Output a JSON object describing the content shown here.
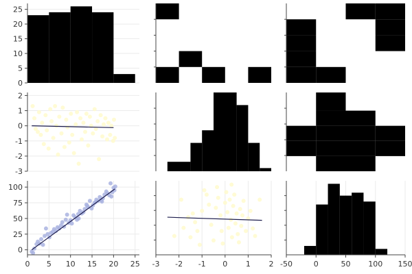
{
  "chart_data": {
    "type": "pairplot",
    "variables": [
      "x1",
      "x2",
      "x3"
    ],
    "colors": {
      "bar": "#000000",
      "scatter_x2_vs_x1": "#fffacd",
      "scatter_x3_vs_x1": "#a9b3e0",
      "scatter_x3_vs_x2": "#fffacd",
      "fit_line": "#1a1a4a",
      "grid": "#ebebeb"
    },
    "panels": [
      {
        "position": "row1-col1",
        "type": "bar",
        "xlim": [
          0,
          26
        ],
        "ylim": [
          0,
          27
        ],
        "xticks": [],
        "yticks": [
          0,
          5,
          10,
          15,
          20,
          25
        ],
        "bins": [
          {
            "x0": 0,
            "x1": 5,
            "count": 23
          },
          {
            "x0": 5,
            "x1": 10,
            "count": 24
          },
          {
            "x0": 10,
            "x1": 15,
            "count": 26
          },
          {
            "x0": 15,
            "x1": 20,
            "count": 24
          },
          {
            "x0": 20,
            "x1": 25,
            "count": 3
          }
        ]
      },
      {
        "position": "row1-col2",
        "type": "heatmap",
        "xlim": [
          -3,
          2
        ],
        "ylim": [
          0,
          25
        ],
        "xticks": [],
        "yticks": [],
        "x_edges": [
          -3,
          -2,
          -1,
          0,
          1,
          2
        ],
        "y_edges": [
          0,
          5,
          10,
          15,
          20,
          25
        ],
        "cells": [
          [
            1,
            0,
            0,
            0,
            0
          ],
          [
            0,
            0,
            0,
            0,
            0
          ],
          [
            0,
            0,
            0,
            0,
            0
          ],
          [
            0,
            1,
            0,
            0,
            0
          ],
          [
            1,
            0,
            1,
            0,
            1
          ]
        ]
      },
      {
        "position": "row1-col3",
        "type": "heatmap",
        "xlim": [
          -50,
          150
        ],
        "ylim": [
          0,
          25
        ],
        "xticks": [],
        "yticks": [],
        "x_edges": [
          -50,
          0,
          50,
          100,
          150
        ],
        "y_edges": [
          0,
          5,
          10,
          15,
          20,
          25
        ],
        "cells": [
          [
            0,
            0,
            1,
            1
          ],
          [
            1,
            0,
            0,
            1
          ],
          [
            1,
            0,
            0,
            1
          ],
          [
            1,
            0,
            0,
            0
          ],
          [
            1,
            1,
            0,
            0
          ]
        ]
      },
      {
        "position": "row2-col1",
        "type": "scatter",
        "xlim": [
          0,
          26
        ],
        "ylim": [
          -3,
          2.2
        ],
        "xticks": [],
        "yticks": [
          -3,
          -2,
          -1,
          0,
          1,
          2
        ],
        "fit": {
          "x0": 1,
          "y0": 0.0,
          "x1": 20,
          "y1": -0.12
        },
        "points": [
          [
            1.2,
            1.3
          ],
          [
            1.6,
            0.5
          ],
          [
            1.9,
            -0.2
          ],
          [
            2.4,
            -0.4
          ],
          [
            2.7,
            0.9
          ],
          [
            3.1,
            -0.6
          ],
          [
            3.4,
            0.2
          ],
          [
            3.8,
            -1.2
          ],
          [
            4.2,
            0.7
          ],
          [
            4.5,
            -0.3
          ],
          [
            4.9,
            -1.5
          ],
          [
            5.3,
            1.1
          ],
          [
            5.6,
            0.3
          ],
          [
            6.0,
            -0.8
          ],
          [
            6.4,
            1.3
          ],
          [
            6.7,
            0.0
          ],
          [
            7.1,
            -1.9
          ],
          [
            7.4,
            0.6
          ],
          [
            7.9,
            -0.5
          ],
          [
            8.2,
            1.2
          ],
          [
            8.6,
            -1.4
          ],
          [
            9.0,
            0.4
          ],
          [
            9.3,
            -0.1
          ],
          [
            9.7,
            -1.1
          ],
          [
            10.1,
            0.8
          ],
          [
            10.4,
            -0.6
          ],
          [
            10.8,
            -1.8
          ],
          [
            11.2,
            0.1
          ],
          [
            11.5,
            0.9
          ],
          [
            11.9,
            -2.5
          ],
          [
            12.3,
            0.5
          ],
          [
            12.6,
            -0.9
          ],
          [
            13.0,
            0.2
          ],
          [
            13.4,
            -0.4
          ],
          [
            13.7,
            0.8
          ],
          [
            14.1,
            -1.3
          ],
          [
            14.5,
            0.6
          ],
          [
            14.8,
            0.0
          ],
          [
            15.2,
            -0.5
          ],
          [
            15.6,
            1.1
          ],
          [
            15.9,
            -0.2
          ],
          [
            16.3,
            0.3
          ],
          [
            16.6,
            -2.2
          ],
          [
            17.0,
            0.7
          ],
          [
            17.4,
            -0.7
          ],
          [
            17.7,
            0.1
          ],
          [
            18.1,
            0.5
          ],
          [
            18.5,
            -0.9
          ],
          [
            18.8,
            0.2
          ],
          [
            19.2,
            -0.6
          ],
          [
            19.5,
            0.0
          ],
          [
            19.9,
            -1.0
          ],
          [
            20.1,
            0.4
          ],
          [
            20.3,
            -0.8
          ]
        ]
      },
      {
        "position": "row2-col2",
        "type": "bar",
        "xlim": [
          -3,
          2
        ],
        "ylim": [
          0,
          25
        ],
        "xticks": [],
        "yticks": [],
        "bins": [
          {
            "x0": -2.5,
            "x1": -1.5,
            "count": 3
          },
          {
            "x0": -1.5,
            "x1": -1.0,
            "count": 9
          },
          {
            "x0": -1.0,
            "x1": -0.5,
            "count": 13
          },
          {
            "x0": -0.5,
            "x1": 0.5,
            "count": 25
          },
          {
            "x0": 0.5,
            "x1": 1.0,
            "count": 21
          },
          {
            "x0": 1.0,
            "x1": 1.5,
            "count": 9
          },
          {
            "x0": 1.5,
            "x1": 2.0,
            "count": 1
          }
        ]
      },
      {
        "position": "row2-col3",
        "type": "heatmap",
        "xlim": [
          -50,
          150
        ],
        "ylim": [
          -3,
          2.2
        ],
        "xticks": [],
        "yticks": [],
        "x_edges": [
          -50,
          0,
          50,
          100,
          150
        ],
        "y_edges": [
          -3,
          -2,
          -1,
          0,
          1,
          2.2
        ],
        "cells": [
          [
            0,
            1,
            0,
            0
          ],
          [
            0,
            1,
            1,
            0
          ],
          [
            1,
            1,
            1,
            1
          ],
          [
            1,
            1,
            1,
            1
          ],
          [
            0,
            1,
            1,
            0
          ]
        ]
      },
      {
        "position": "row3-col1",
        "type": "scatter",
        "xlim": [
          0,
          26
        ],
        "ylim": [
          -8,
          110
        ],
        "xticks": [
          0,
          5,
          10,
          15,
          20,
          25
        ],
        "yticks": [
          0,
          25,
          50,
          75,
          100
        ],
        "fit": {
          "x0": 1,
          "y0": 0,
          "x1": 20.3,
          "y1": 97
        },
        "points": [
          [
            1.0,
            -3
          ],
          [
            1.3,
            -5
          ],
          [
            1.6,
            2
          ],
          [
            2.1,
            9
          ],
          [
            2.4,
            13
          ],
          [
            2.8,
            10
          ],
          [
            3.2,
            17
          ],
          [
            3.6,
            8
          ],
          [
            4.0,
            22
          ],
          [
            4.3,
            34
          ],
          [
            4.7,
            25
          ],
          [
            5.1,
            20
          ],
          [
            5.5,
            27
          ],
          [
            5.9,
            29
          ],
          [
            6.2,
            33
          ],
          [
            6.6,
            30
          ],
          [
            7.0,
            36
          ],
          [
            7.4,
            34
          ],
          [
            7.8,
            39
          ],
          [
            8.1,
            44
          ],
          [
            8.5,
            37
          ],
          [
            8.9,
            48
          ],
          [
            9.2,
            56
          ],
          [
            9.6,
            43
          ],
          [
            10.0,
            47
          ],
          [
            10.3,
            42
          ],
          [
            10.7,
            55
          ],
          [
            11.1,
            52
          ],
          [
            11.5,
            48
          ],
          [
            11.8,
            57
          ],
          [
            12.2,
            62
          ],
          [
            12.6,
            58
          ],
          [
            13.0,
            60
          ],
          [
            13.3,
            65
          ],
          [
            13.7,
            72
          ],
          [
            14.1,
            68
          ],
          [
            14.5,
            78
          ],
          [
            14.9,
            66
          ],
          [
            15.2,
            71
          ],
          [
            15.6,
            75
          ],
          [
            16.0,
            80
          ],
          [
            16.4,
            78
          ],
          [
            16.8,
            84
          ],
          [
            17.1,
            79
          ],
          [
            17.5,
            82
          ],
          [
            17.9,
            88
          ],
          [
            18.3,
            93
          ],
          [
            18.6,
            90
          ],
          [
            19.0,
            87
          ],
          [
            19.3,
            106
          ],
          [
            19.7,
            92
          ],
          [
            20.0,
            99
          ],
          [
            20.2,
            95
          ],
          [
            20.4,
            101
          ],
          [
            19.5,
            85
          ],
          [
            17.3,
            77
          ],
          [
            15.8,
            76
          ],
          [
            13.9,
            70
          ],
          [
            11.9,
            50
          ]
        ]
      },
      {
        "position": "row3-col2",
        "type": "scatter",
        "xlim": [
          -3,
          2
        ],
        "ylim": [
          -8,
          110
        ],
        "xticks": [
          -3,
          -2,
          -1,
          0,
          1,
          2
        ],
        "yticks": [],
        "fit": {
          "x0": -2.5,
          "y0": 52,
          "x1": 1.6,
          "y1": 47
        },
        "points": [
          [
            -2.2,
            22
          ],
          [
            -1.9,
            80
          ],
          [
            -1.8,
            35
          ],
          [
            -1.6,
            52
          ],
          [
            -1.5,
            20
          ],
          [
            -1.3,
            44
          ],
          [
            -1.2,
            30
          ],
          [
            -1.1,
            8
          ],
          [
            -1.0,
            62
          ],
          [
            -0.9,
            95
          ],
          [
            -0.8,
            88
          ],
          [
            -0.7,
            72
          ],
          [
            -0.6,
            40
          ],
          [
            -0.5,
            15
          ],
          [
            -0.4,
            67
          ],
          [
            -0.3,
            83
          ],
          [
            -0.2,
            55
          ],
          [
            -0.15,
            30
          ],
          [
            -0.1,
            10
          ],
          [
            0.0,
            75
          ],
          [
            0.05,
            92
          ],
          [
            0.1,
            60
          ],
          [
            0.15,
            35
          ],
          [
            0.2,
            80
          ],
          [
            0.25,
            48
          ],
          [
            0.3,
            20
          ],
          [
            0.35,
            70
          ],
          [
            0.4,
            88
          ],
          [
            0.45,
            42
          ],
          [
            0.5,
            58
          ],
          [
            0.55,
            25
          ],
          [
            0.6,
            12
          ],
          [
            0.65,
            65
          ],
          [
            0.7,
            38
          ],
          [
            0.75,
            55
          ],
          [
            0.8,
            78
          ],
          [
            0.9,
            30
          ],
          [
            1.0,
            50
          ],
          [
            1.1,
            62
          ],
          [
            1.2,
            34
          ],
          [
            1.3,
            22
          ],
          [
            1.5,
            80
          ],
          [
            -0.35,
            100
          ],
          [
            0.28,
            104
          ],
          [
            -1.4,
            58
          ]
        ]
      },
      {
        "position": "row3-col3",
        "type": "bar",
        "xlim": [
          -50,
          150
        ],
        "ylim": [
          0,
          25
        ],
        "xticks": [
          -50,
          0,
          50,
          100,
          150
        ],
        "yticks": [],
        "bins": [
          {
            "x0": -20,
            "x1": 0,
            "count": 3
          },
          {
            "x0": 0,
            "x1": 20,
            "count": 17
          },
          {
            "x0": 20,
            "x1": 40,
            "count": 24
          },
          {
            "x0": 40,
            "x1": 60,
            "count": 20
          },
          {
            "x0": 60,
            "x1": 80,
            "count": 21
          },
          {
            "x0": 80,
            "x1": 100,
            "count": 18
          },
          {
            "x0": 100,
            "x1": 120,
            "count": 2
          }
        ]
      }
    ]
  }
}
